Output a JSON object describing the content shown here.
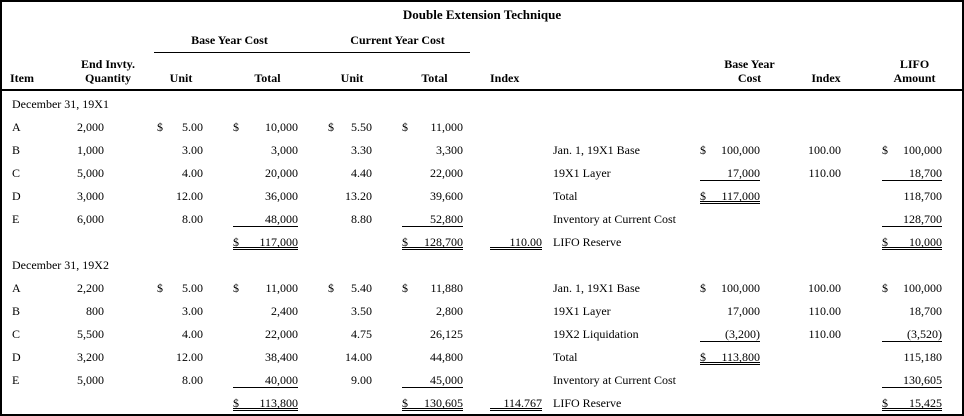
{
  "title": "Double Extension Technique",
  "headers": {
    "group_base": "Base Year Cost",
    "group_current": "Current Year Cost",
    "item": "Item",
    "quantity_l1": "End Invty.",
    "quantity_l2": "Quantity",
    "unit": "Unit",
    "total": "Total",
    "index_left": "Index",
    "right_cost_l1": "Base Year",
    "right_cost_l2": "Cost",
    "index_right": "Index",
    "lifo_l1": "LIFO",
    "lifo_l2": "Amount"
  },
  "sections": [
    {
      "label": "December 31, 19X1",
      "rows": [
        {
          "item": "A",
          "qty": "2,000",
          "bu_d": "$",
          "bu": "5.00",
          "bt_d": "$",
          "bt": "10,000",
          "cu_d": "$",
          "cu": "5.50",
          "ct_d": "$",
          "ct": "11,000"
        },
        {
          "item": "B",
          "qty": "1,000",
          "bu": "3.00",
          "bt": "3,000",
          "cu": "3.30",
          "ct": "3,300",
          "desc": "Jan. 1, 19X1 Base",
          "rc_d": "$",
          "rc": "100,000",
          "ri": "100.00",
          "ra_d": "$",
          "ra": "100,000"
        },
        {
          "item": "C",
          "qty": "5,000",
          "bu": "4.00",
          "bt": "20,000",
          "cu": "4.40",
          "ct": "22,000",
          "desc": "19X1 Layer",
          "rc": "17,000",
          "rc_u": "single",
          "ri": "110.00",
          "ra": "18,700",
          "ra_u": "single"
        },
        {
          "item": "D",
          "qty": "3,000",
          "bu": "12.00",
          "bt": "36,000",
          "cu": "13.20",
          "ct": "39,600",
          "desc": "Total",
          "rc_d": "$",
          "rc": "117,000",
          "rc_u": "double",
          "ra": "118,700"
        },
        {
          "item": "E",
          "qty": "6,000",
          "bu": "8.00",
          "bt": "48,000",
          "bt_u": "single",
          "cu": "8.80",
          "ct": "52,800",
          "ct_u": "single",
          "desc": "Inventory at Current Cost",
          "ra": "128,700",
          "ra_u": "single"
        },
        {
          "bt_d": "$",
          "bt": "117,000",
          "bt_u": "double",
          "ct_d": "$",
          "ct": "128,700",
          "ct_u": "double",
          "idx": "110.00",
          "idx_u": "double",
          "desc": "LIFO Reserve",
          "ra_d": "$",
          "ra": "10,000",
          "ra_u": "double"
        }
      ]
    },
    {
      "label": "December 31, 19X2",
      "rows": [
        {
          "item": "A",
          "qty": "2,200",
          "bu_d": "$",
          "bu": "5.00",
          "bt_d": "$",
          "bt": "11,000",
          "cu_d": "$",
          "cu": "5.40",
          "ct_d": "$",
          "ct": "11,880",
          "desc": "Jan. 1, 19X1 Base",
          "rc_d": "$",
          "rc": "100,000",
          "ri": "100.00",
          "ra_d": "$",
          "ra": "100,000"
        },
        {
          "item": "B",
          "qty": "800",
          "bu": "3.00",
          "bt": "2,400",
          "cu": "3.50",
          "ct": "2,800",
          "desc": "19X1 Layer",
          "rc": "17,000",
          "ri": "110.00",
          "ra": "18,700"
        },
        {
          "item": "C",
          "qty": "5,500",
          "bu": "4.00",
          "bt": "22,000",
          "cu": "4.75",
          "ct": "26,125",
          "desc": "19X2 Liquidation",
          "rc": "(3,200)",
          "rc_u": "single",
          "ri": "110.00",
          "ra": "(3,520)",
          "ra_u": "single"
        },
        {
          "item": "D",
          "qty": "3,200",
          "bu": "12.00",
          "bt": "38,400",
          "cu": "14.00",
          "ct": "44,800",
          "desc": "Total",
          "rc_d": "$",
          "rc": "113,800",
          "rc_u": "double",
          "ra": "115,180"
        },
        {
          "item": "E",
          "qty": "5,000",
          "bu": "8.00",
          "bt": "40,000",
          "bt_u": "single",
          "cu": "9.00",
          "ct": "45,000",
          "ct_u": "single",
          "desc": "Inventory at Current Cost",
          "ra": "130,605",
          "ra_u": "single"
        },
        {
          "bt_d": "$",
          "bt": "113,800",
          "bt_u": "double",
          "ct_d": "$",
          "ct": "130,605",
          "ct_u": "double",
          "idx": "114.767",
          "idx_u": "double",
          "desc": "LIFO Reserve",
          "ra_d": "$",
          "ra": "15,425",
          "ra_u": "double"
        }
      ]
    }
  ]
}
